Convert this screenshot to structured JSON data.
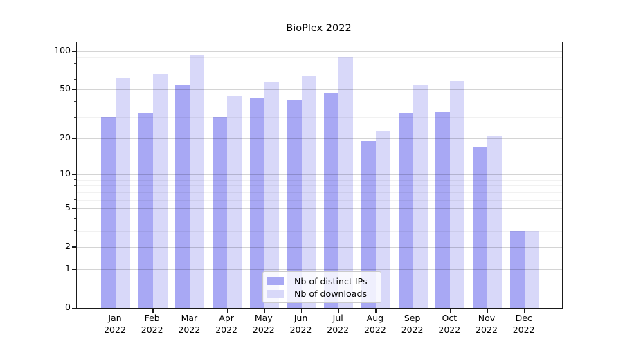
{
  "chart_data": {
    "type": "bar",
    "title": "BioPlex 2022",
    "categories": [
      {
        "month": "Jan",
        "year": "2022"
      },
      {
        "month": "Feb",
        "year": "2022"
      },
      {
        "month": "Mar",
        "year": "2022"
      },
      {
        "month": "Apr",
        "year": "2022"
      },
      {
        "month": "May",
        "year": "2022"
      },
      {
        "month": "Jun",
        "year": "2022"
      },
      {
        "month": "Jul",
        "year": "2022"
      },
      {
        "month": "Aug",
        "year": "2022"
      },
      {
        "month": "Sep",
        "year": "2022"
      },
      {
        "month": "Oct",
        "year": "2022"
      },
      {
        "month": "Nov",
        "year": "2022"
      },
      {
        "month": "Dec",
        "year": "2022"
      }
    ],
    "series": [
      {
        "name": "Nb of distinct IPs",
        "color": "#a8a8f4",
        "values": [
          30,
          32,
          54,
          30,
          43,
          41,
          47,
          19,
          32,
          33,
          17,
          3
        ]
      },
      {
        "name": "Nb of downloads",
        "color": "#d8d8f9",
        "values": [
          61,
          66,
          94,
          44,
          57,
          64,
          90,
          23,
          54,
          58,
          21,
          3
        ]
      }
    ],
    "yscale": "log1p",
    "yticks": [
      100,
      50,
      20,
      10,
      5,
      2,
      1,
      0
    ],
    "ylim": [
      0,
      118
    ],
    "grid": true,
    "legend_position": "lower center"
  }
}
